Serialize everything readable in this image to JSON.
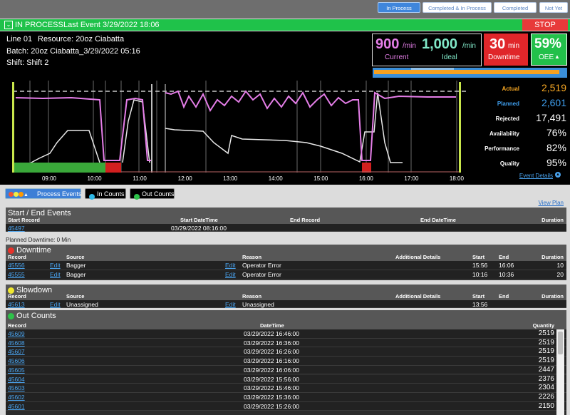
{
  "toolbar": {
    "buttons": [
      "In Process",
      "Completed & In Process",
      "Completed",
      "Not Yet"
    ]
  },
  "status": {
    "state": "IN PROCESS",
    "last_event": "Last Event 3/29/2022 18:06",
    "stop": "STOP"
  },
  "info": {
    "line": "Line 01",
    "resource": "Resource: 20oz Ciabatta",
    "batch": "Batch: 20oz Ciabatta_3/29/2022 05:16",
    "shift": "Shift: Shift 2"
  },
  "rates": {
    "current": {
      "value": "900",
      "unit": "/min",
      "label": "Current"
    },
    "ideal": {
      "value": "1,000",
      "unit": "/min",
      "label": "Ideal"
    },
    "downtime": {
      "value": "30",
      "unit": "min",
      "label": "Downtime"
    },
    "oee": {
      "value": "59%",
      "label": "OEE"
    }
  },
  "timeline": {
    "times": [
      "09:00",
      "10:00",
      "11:00",
      "12:00",
      "13:00",
      "14:00",
      "15:00",
      "16:00",
      "17:00",
      "18:00"
    ]
  },
  "stats": [
    {
      "label": "Actual",
      "value": "2,519"
    },
    {
      "label": "Planned",
      "value": "2,601"
    },
    {
      "label": "Rejected",
      "value": "17,491"
    },
    {
      "label": "Availability",
      "value": "76%"
    },
    {
      "label": "Performance",
      "value": "82%"
    },
    {
      "label": "Quality",
      "value": "95%"
    }
  ],
  "event_details": "Event Details",
  "tabs": [
    "Process Events",
    "In Counts",
    "Out Counts"
  ],
  "view_plan": "View Plan",
  "start_end": {
    "title": "Start / End Events",
    "columns": [
      "Start Record",
      "Start DateTime",
      "End Record",
      "End DateTime",
      "Duration"
    ],
    "rows": [
      {
        "start_record": "45497",
        "start_datetime": "03/29/2022 08:16:00"
      }
    ]
  },
  "planned_downtime": "Planned Downtime: 0 Min",
  "downtime": {
    "title": "Downtime",
    "columns": [
      "Record",
      "Source",
      "Reason",
      "Additional Details",
      "Start",
      "End",
      "Duration"
    ],
    "edit": "Edit",
    "rows": [
      {
        "record": "45556",
        "source": "Bagger",
        "reason": "Operator Error",
        "start": "15:56",
        "end": "16:06",
        "duration": 10
      },
      {
        "record": "45555",
        "source": "Bagger",
        "reason": "Operator Error",
        "start": "10:16",
        "end": "10:36",
        "duration": 20
      }
    ]
  },
  "slowdown": {
    "title": "Slowdown",
    "columns": [
      "Record",
      "Source",
      "Reason",
      "Additional Details",
      "Start",
      "End",
      "Duration"
    ],
    "edit": "Edit",
    "rows": [
      {
        "record": "45613",
        "source": "Unassigned",
        "reason": "Unassigned",
        "start": "13:56"
      }
    ]
  },
  "out_counts": {
    "title": "Out Counts",
    "columns": [
      "Record",
      "DateTime",
      "Quantity"
    ],
    "rows": [
      {
        "record": "45609",
        "datetime": "03/29/2022 16:46:00",
        "quantity": 2519
      },
      {
        "record": "45608",
        "datetime": "03/29/2022 16:36:00",
        "quantity": 2519
      },
      {
        "record": "45607",
        "datetime": "03/29/2022 16:26:00",
        "quantity": 2519
      },
      {
        "record": "45606",
        "datetime": "03/29/2022 16:16:00",
        "quantity": 2519
      },
      {
        "record": "45605",
        "datetime": "03/29/2022 16:06:00",
        "quantity": 2447
      },
      {
        "record": "45604",
        "datetime": "03/29/2022 15:56:00",
        "quantity": 2376
      },
      {
        "record": "45603",
        "datetime": "03/29/2022 15:46:00",
        "quantity": 2304
      },
      {
        "record": "45602",
        "datetime": "03/29/2022 15:36:00",
        "quantity": 2226
      },
      {
        "record": "45601",
        "datetime": "03/29/2022 15:26:00",
        "quantity": 2150
      }
    ]
  }
}
